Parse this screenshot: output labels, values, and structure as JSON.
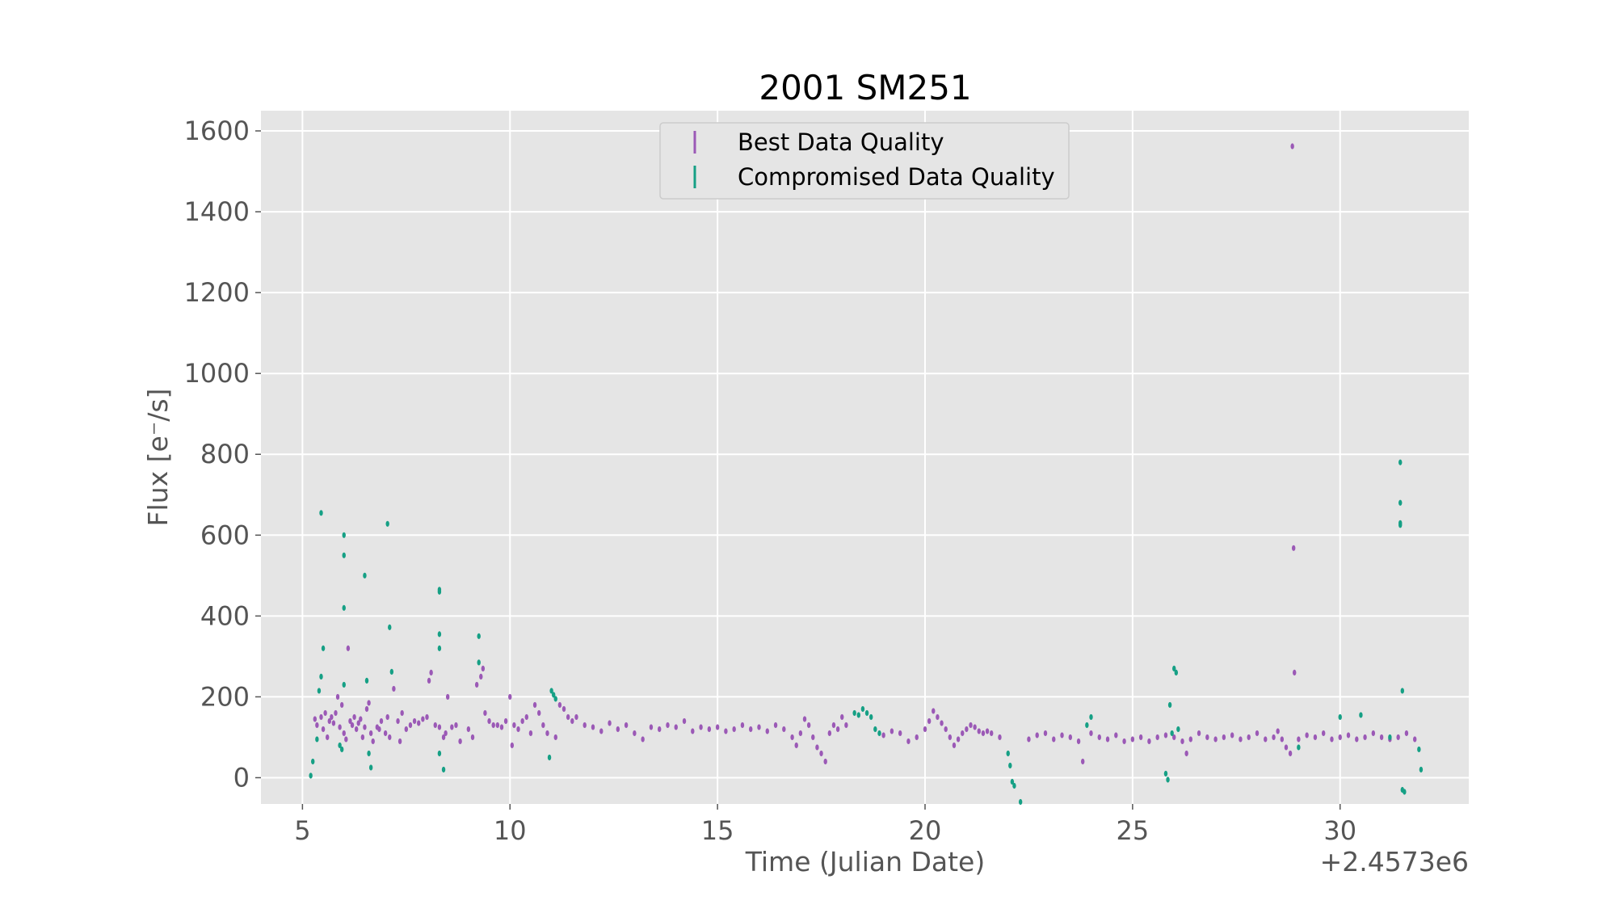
{
  "chart_data": {
    "type": "scatter",
    "title": "2001 SM251",
    "xlabel": "Time (Julian Date)",
    "ylabel": "Flux [e⁻/s]",
    "x_offset_label": "+2.4573e6",
    "xlim": [
      4.0,
      33.1
    ],
    "ylim": [
      -65,
      1650
    ],
    "xticks": [
      5,
      10,
      15,
      20,
      25,
      30
    ],
    "yticks": [
      0,
      200,
      400,
      600,
      800,
      1000,
      1200,
      1400,
      1600
    ],
    "grid": true,
    "legend_position": "top-center",
    "series": [
      {
        "name": "Best Data Quality",
        "color": "#9b59b6",
        "points": [
          [
            5.3,
            145
          ],
          [
            5.35,
            130
          ],
          [
            5.45,
            150
          ],
          [
            5.5,
            120
          ],
          [
            5.55,
            160
          ],
          [
            5.6,
            100
          ],
          [
            5.65,
            140
          ],
          [
            5.7,
            150
          ],
          [
            5.75,
            135
          ],
          [
            5.8,
            160
          ],
          [
            5.85,
            200
          ],
          [
            5.9,
            125
          ],
          [
            5.95,
            180
          ],
          [
            6.0,
            110
          ],
          [
            6.05,
            95
          ],
          [
            6.1,
            320
          ],
          [
            6.15,
            140
          ],
          [
            6.2,
            130
          ],
          [
            6.25,
            150
          ],
          [
            6.3,
            120
          ],
          [
            6.35,
            135
          ],
          [
            6.4,
            145
          ],
          [
            6.45,
            100
          ],
          [
            6.5,
            125
          ],
          [
            6.55,
            170
          ],
          [
            6.6,
            185
          ],
          [
            6.65,
            110
          ],
          [
            6.7,
            90
          ],
          [
            6.8,
            125
          ],
          [
            6.85,
            120
          ],
          [
            6.9,
            140
          ],
          [
            7.0,
            110
          ],
          [
            7.05,
            150
          ],
          [
            7.1,
            100
          ],
          [
            7.2,
            220
          ],
          [
            7.3,
            140
          ],
          [
            7.35,
            90
          ],
          [
            7.4,
            160
          ],
          [
            7.5,
            120
          ],
          [
            7.6,
            130
          ],
          [
            7.7,
            140
          ],
          [
            7.8,
            135
          ],
          [
            7.9,
            145
          ],
          [
            8.0,
            150
          ],
          [
            8.05,
            240
          ],
          [
            8.1,
            260
          ],
          [
            8.2,
            130
          ],
          [
            8.3,
            125
          ],
          [
            8.4,
            100
          ],
          [
            8.45,
            110
          ],
          [
            8.5,
            200
          ],
          [
            8.6,
            125
          ],
          [
            8.7,
            130
          ],
          [
            8.8,
            90
          ],
          [
            9.0,
            120
          ],
          [
            9.1,
            100
          ],
          [
            9.2,
            230
          ],
          [
            9.3,
            250
          ],
          [
            9.35,
            270
          ],
          [
            9.4,
            160
          ],
          [
            9.5,
            140
          ],
          [
            9.6,
            130
          ],
          [
            9.7,
            130
          ],
          [
            9.8,
            125
          ],
          [
            9.9,
            140
          ],
          [
            10.0,
            200
          ],
          [
            10.05,
            80
          ],
          [
            10.1,
            130
          ],
          [
            10.2,
            120
          ],
          [
            10.3,
            140
          ],
          [
            10.4,
            150
          ],
          [
            10.5,
            110
          ],
          [
            10.6,
            180
          ],
          [
            10.7,
            160
          ],
          [
            10.8,
            130
          ],
          [
            10.9,
            110
          ],
          [
            11.1,
            100
          ],
          [
            11.2,
            180
          ],
          [
            11.3,
            170
          ],
          [
            11.4,
            150
          ],
          [
            11.5,
            140
          ],
          [
            11.6,
            150
          ],
          [
            11.8,
            130
          ],
          [
            12.0,
            125
          ],
          [
            12.2,
            115
          ],
          [
            12.4,
            135
          ],
          [
            12.6,
            120
          ],
          [
            12.8,
            130
          ],
          [
            13.0,
            110
          ],
          [
            13.2,
            95
          ],
          [
            13.4,
            125
          ],
          [
            13.6,
            120
          ],
          [
            13.8,
            130
          ],
          [
            14.0,
            125
          ],
          [
            14.2,
            140
          ],
          [
            14.4,
            115
          ],
          [
            14.6,
            125
          ],
          [
            14.8,
            120
          ],
          [
            15.0,
            125
          ],
          [
            15.2,
            115
          ],
          [
            15.4,
            120
          ],
          [
            15.6,
            130
          ],
          [
            15.8,
            120
          ],
          [
            16.0,
            125
          ],
          [
            16.2,
            115
          ],
          [
            16.4,
            130
          ],
          [
            16.6,
            120
          ],
          [
            16.8,
            100
          ],
          [
            16.9,
            80
          ],
          [
            17.0,
            110
          ],
          [
            17.1,
            145
          ],
          [
            17.2,
            130
          ],
          [
            17.3,
            100
          ],
          [
            17.4,
            75
          ],
          [
            17.5,
            60
          ],
          [
            17.6,
            40
          ],
          [
            17.7,
            110
          ],
          [
            17.8,
            130
          ],
          [
            17.9,
            120
          ],
          [
            18.0,
            150
          ],
          [
            18.1,
            130
          ],
          [
            19.0,
            105
          ],
          [
            19.2,
            115
          ],
          [
            19.4,
            110
          ],
          [
            19.6,
            90
          ],
          [
            19.8,
            100
          ],
          [
            20.0,
            120
          ],
          [
            20.1,
            140
          ],
          [
            20.2,
            165
          ],
          [
            20.3,
            150
          ],
          [
            20.4,
            135
          ],
          [
            20.5,
            120
          ],
          [
            20.6,
            100
          ],
          [
            20.7,
            80
          ],
          [
            20.8,
            95
          ],
          [
            20.9,
            110
          ],
          [
            21.0,
            120
          ],
          [
            21.1,
            130
          ],
          [
            21.2,
            125
          ],
          [
            21.3,
            115
          ],
          [
            21.4,
            110
          ],
          [
            21.5,
            115
          ],
          [
            21.6,
            110
          ],
          [
            21.8,
            100
          ],
          [
            22.5,
            95
          ],
          [
            22.7,
            105
          ],
          [
            22.9,
            110
          ],
          [
            23.1,
            95
          ],
          [
            23.3,
            105
          ],
          [
            23.5,
            100
          ],
          [
            23.7,
            90
          ],
          [
            23.8,
            40
          ],
          [
            24.0,
            110
          ],
          [
            24.2,
            100
          ],
          [
            24.4,
            95
          ],
          [
            24.6,
            105
          ],
          [
            24.8,
            90
          ],
          [
            25.0,
            95
          ],
          [
            25.2,
            100
          ],
          [
            25.4,
            90
          ],
          [
            25.6,
            100
          ],
          [
            25.8,
            105
          ],
          [
            26.0,
            100
          ],
          [
            26.2,
            90
          ],
          [
            26.3,
            60
          ],
          [
            26.4,
            95
          ],
          [
            26.6,
            110
          ],
          [
            26.8,
            100
          ],
          [
            27.0,
            95
          ],
          [
            27.2,
            100
          ],
          [
            27.4,
            105
          ],
          [
            27.6,
            95
          ],
          [
            27.8,
            100
          ],
          [
            28.0,
            110
          ],
          [
            28.2,
            95
          ],
          [
            28.4,
            100
          ],
          [
            28.5,
            115
          ],
          [
            28.6,
            95
          ],
          [
            28.7,
            75
          ],
          [
            28.8,
            60
          ],
          [
            28.85,
            1562
          ],
          [
            28.88,
            568
          ],
          [
            28.9,
            260
          ],
          [
            29.0,
            95
          ],
          [
            29.2,
            105
          ],
          [
            29.4,
            100
          ],
          [
            29.6,
            110
          ],
          [
            29.8,
            95
          ],
          [
            30.0,
            100
          ],
          [
            30.2,
            105
          ],
          [
            30.4,
            95
          ],
          [
            30.6,
            100
          ],
          [
            30.8,
            110
          ],
          [
            31.0,
            100
          ],
          [
            31.2,
            95
          ],
          [
            31.4,
            100
          ],
          [
            31.6,
            110
          ],
          [
            31.8,
            95
          ]
        ]
      },
      {
        "name": "Compromised Data Quality",
        "color": "#16a085",
        "points": [
          [
            5.2,
            5
          ],
          [
            5.25,
            40
          ],
          [
            5.35,
            95
          ],
          [
            5.4,
            215
          ],
          [
            5.45,
            250
          ],
          [
            5.5,
            320
          ],
          [
            5.45,
            655
          ],
          [
            5.9,
            80
          ],
          [
            5.95,
            70
          ],
          [
            6.0,
            600
          ],
          [
            6.0,
            550
          ],
          [
            6.0,
            420
          ],
          [
            6.0,
            230
          ],
          [
            6.5,
            500
          ],
          [
            6.55,
            240
          ],
          [
            6.6,
            60
          ],
          [
            6.65,
            25
          ],
          [
            7.05,
            628
          ],
          [
            7.1,
            372
          ],
          [
            7.15,
            262
          ],
          [
            8.3,
            460
          ],
          [
            8.3,
            465
          ],
          [
            8.3,
            355
          ],
          [
            8.3,
            320
          ],
          [
            8.4,
            20
          ],
          [
            8.3,
            60
          ],
          [
            9.25,
            350
          ],
          [
            9.25,
            285
          ],
          [
            10.95,
            50
          ],
          [
            11.0,
            215
          ],
          [
            11.05,
            205
          ],
          [
            11.1,
            195
          ],
          [
            18.3,
            160
          ],
          [
            18.4,
            155
          ],
          [
            18.5,
            170
          ],
          [
            18.6,
            160
          ],
          [
            18.7,
            150
          ],
          [
            18.8,
            120
          ],
          [
            18.9,
            110
          ],
          [
            22.0,
            60
          ],
          [
            22.05,
            30
          ],
          [
            22.1,
            -10
          ],
          [
            22.15,
            -20
          ],
          [
            22.3,
            -60
          ],
          [
            23.9,
            130
          ],
          [
            24.0,
            150
          ],
          [
            25.8,
            10
          ],
          [
            25.85,
            -5
          ],
          [
            25.9,
            180
          ],
          [
            25.95,
            110
          ],
          [
            26.0,
            270
          ],
          [
            26.05,
            260
          ],
          [
            26.1,
            120
          ],
          [
            29.0,
            75
          ],
          [
            30.0,
            150
          ],
          [
            30.5,
            155
          ],
          [
            31.2,
            100
          ],
          [
            31.45,
            780
          ],
          [
            31.45,
            680
          ],
          [
            31.45,
            630
          ],
          [
            31.45,
            625
          ],
          [
            31.5,
            215
          ],
          [
            31.5,
            -30
          ],
          [
            31.55,
            -35
          ],
          [
            31.9,
            70
          ],
          [
            31.95,
            20
          ]
        ]
      }
    ]
  }
}
